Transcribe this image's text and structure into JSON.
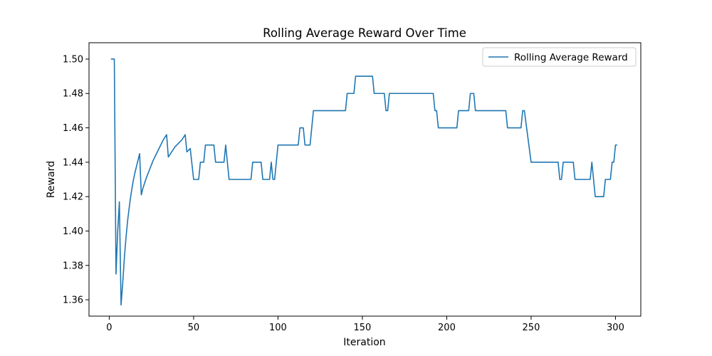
{
  "chart_data": {
    "type": "line",
    "title": "Rolling Average Reward Over Time",
    "xlabel": "Iteration",
    "ylabel": "Reward",
    "xlim": [
      -12,
      315
    ],
    "ylim": [
      1.3505,
      1.5095
    ],
    "xticks": [
      0,
      50,
      100,
      150,
      200,
      250,
      300
    ],
    "xtick_labels": [
      "0",
      "50",
      "100",
      "150",
      "200",
      "250",
      "300"
    ],
    "yticks": [
      1.36,
      1.38,
      1.4,
      1.42,
      1.44,
      1.46,
      1.48,
      1.5
    ],
    "ytick_labels": [
      "1.36",
      "1.38",
      "1.40",
      "1.42",
      "1.44",
      "1.46",
      "1.48",
      "1.50"
    ],
    "grid": false,
    "legend": {
      "position": "top-right"
    },
    "series": [
      {
        "name": "Rolling Average Reward",
        "color": "#1f77b4",
        "points": [
          [
            1,
            1.5
          ],
          [
            3,
            1.5
          ],
          [
            4,
            1.375
          ],
          [
            5,
            1.4
          ],
          [
            6,
            1.417
          ],
          [
            7,
            1.357
          ],
          [
            8,
            1.37
          ],
          [
            9,
            1.385
          ],
          [
            10,
            1.397
          ],
          [
            11,
            1.407
          ],
          [
            12,
            1.415
          ],
          [
            13,
            1.422
          ],
          [
            14,
            1.428
          ],
          [
            15,
            1.433
          ],
          [
            16,
            1.437
          ],
          [
            17,
            1.441
          ],
          [
            18,
            1.445
          ],
          [
            19,
            1.421
          ],
          [
            20,
            1.425
          ],
          [
            22,
            1.431
          ],
          [
            24,
            1.436
          ],
          [
            26,
            1.441
          ],
          [
            28,
            1.445
          ],
          [
            30,
            1.449
          ],
          [
            32,
            1.453
          ],
          [
            34,
            1.456
          ],
          [
            35,
            1.443
          ],
          [
            37,
            1.446
          ],
          [
            39,
            1.449
          ],
          [
            41,
            1.451
          ],
          [
            43,
            1.453
          ],
          [
            45,
            1.456
          ],
          [
            46,
            1.446
          ],
          [
            48,
            1.448
          ],
          [
            50,
            1.43
          ],
          [
            53,
            1.43
          ],
          [
            54,
            1.44
          ],
          [
            56,
            1.44
          ],
          [
            57,
            1.45
          ],
          [
            62,
            1.45
          ],
          [
            63,
            1.44
          ],
          [
            68,
            1.44
          ],
          [
            69,
            1.45
          ],
          [
            71,
            1.43
          ],
          [
            84,
            1.43
          ],
          [
            85,
            1.44
          ],
          [
            90,
            1.44
          ],
          [
            91,
            1.43
          ],
          [
            95,
            1.43
          ],
          [
            96,
            1.44
          ],
          [
            97,
            1.43
          ],
          [
            98,
            1.43
          ],
          [
            100,
            1.45
          ],
          [
            112,
            1.45
          ],
          [
            113,
            1.46
          ],
          [
            115,
            1.46
          ],
          [
            116,
            1.45
          ],
          [
            119,
            1.45
          ],
          [
            121,
            1.47
          ],
          [
            140,
            1.47
          ],
          [
            141,
            1.48
          ],
          [
            145,
            1.48
          ],
          [
            146,
            1.49
          ],
          [
            156,
            1.49
          ],
          [
            157,
            1.48
          ],
          [
            163,
            1.48
          ],
          [
            164,
            1.47
          ],
          [
            165,
            1.47
          ],
          [
            166,
            1.48
          ],
          [
            192,
            1.48
          ],
          [
            193,
            1.47
          ],
          [
            194,
            1.47
          ],
          [
            195,
            1.46
          ],
          [
            206,
            1.46
          ],
          [
            207,
            1.47
          ],
          [
            213,
            1.47
          ],
          [
            214,
            1.48
          ],
          [
            216,
            1.48
          ],
          [
            217,
            1.47
          ],
          [
            235,
            1.47
          ],
          [
            236,
            1.46
          ],
          [
            244,
            1.46
          ],
          [
            245,
            1.47
          ],
          [
            246,
            1.47
          ],
          [
            250,
            1.44
          ],
          [
            266,
            1.44
          ],
          [
            267,
            1.43
          ],
          [
            268,
            1.43
          ],
          [
            269,
            1.44
          ],
          [
            275,
            1.44
          ],
          [
            276,
            1.43
          ],
          [
            285,
            1.43
          ],
          [
            286,
            1.44
          ],
          [
            288,
            1.42
          ],
          [
            293,
            1.42
          ],
          [
            294,
            1.43
          ],
          [
            297,
            1.43
          ],
          [
            298,
            1.44
          ],
          [
            299,
            1.44
          ],
          [
            300,
            1.45
          ],
          [
            301,
            1.45
          ]
        ]
      }
    ]
  }
}
